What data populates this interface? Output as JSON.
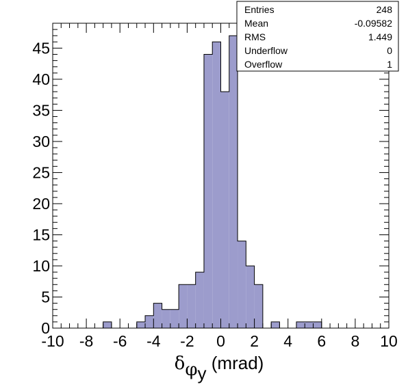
{
  "chart_data": {
    "type": "bar",
    "histogram": true,
    "bin_width": 0.5,
    "x": [
      -6.75,
      -4.75,
      -4.25,
      -3.75,
      -3.25,
      -2.75,
      -2.25,
      -1.75,
      -1.25,
      -0.75,
      -0.25,
      0.25,
      0.75,
      1.25,
      1.75,
      2.25,
      3.25,
      4.75,
      5.25,
      5.75
    ],
    "values": [
      1,
      1,
      2,
      4,
      3,
      3,
      7,
      7,
      9,
      44,
      46,
      38,
      47,
      14,
      10,
      7,
      1,
      1,
      1,
      1
    ],
    "xlim": [
      -10,
      10
    ],
    "ylim": [
      0,
      49
    ],
    "x_ticks": [
      "-10",
      "-8",
      "-6",
      "-4",
      "-2",
      "0",
      "2",
      "4",
      "6",
      "8",
      "10"
    ],
    "y_ticks": [
      "0",
      "5",
      "10",
      "15",
      "20",
      "25",
      "30",
      "35",
      "40",
      "45"
    ],
    "xlabel": {
      "symbol": "δ",
      "sub": "φ",
      "subsub": "y",
      "unit": " (mrad)"
    },
    "ylabel": "",
    "title": "",
    "grid": false,
    "fill_color": "#9c9ccc",
    "line_color": "#000000",
    "stats_box": {
      "placement": "top-right",
      "rows": [
        {
          "label": "Entries",
          "value": "248"
        },
        {
          "label": "Mean",
          "value": "-0.09582"
        },
        {
          "label": "RMS",
          "value": "1.449"
        },
        {
          "label": "Underflow",
          "value": "0"
        },
        {
          "label": "Overflow",
          "value": "1"
        }
      ]
    }
  }
}
